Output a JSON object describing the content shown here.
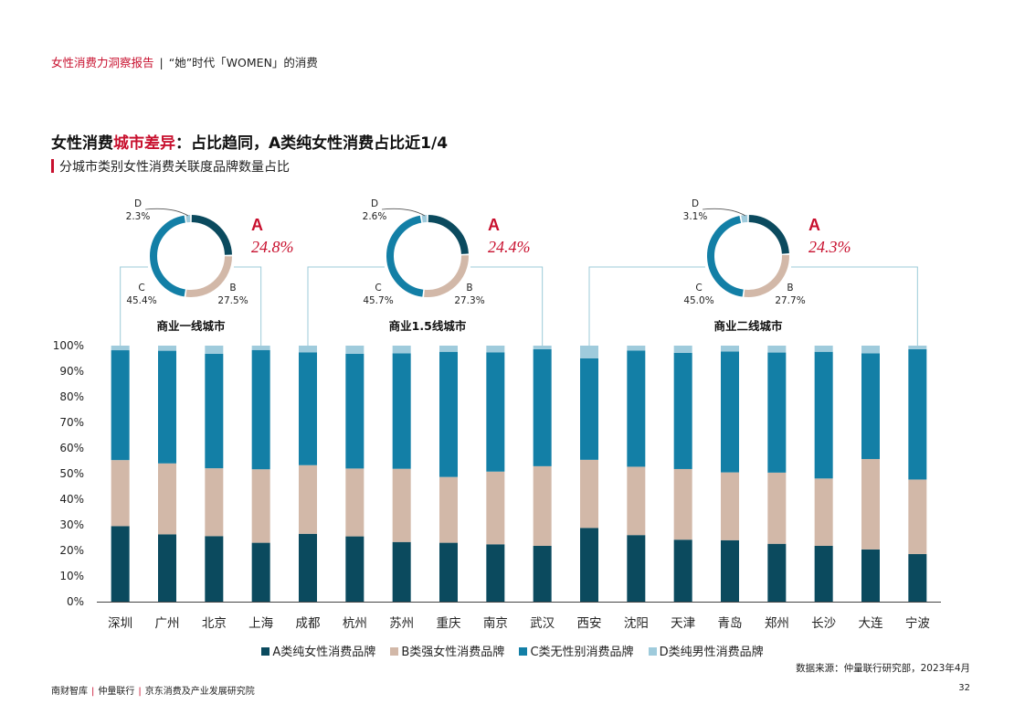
{
  "header": {
    "report": "女性消费力洞察报告",
    "separator": "|",
    "section": "“她”时代「WOMEN」的消费"
  },
  "title": {
    "part1": "女性消费",
    "highlight": "城市差异",
    "part2": "：占比趋同，A类纯女性消费占比近1/4"
  },
  "subtitle": "分城市类别女性消费关联度品牌数量占比",
  "colors": {
    "A": "#0b4a5e",
    "B": "#d2b8a8",
    "C": "#137fa6",
    "D": "#9fcbdc",
    "accent": "#c8102e",
    "bracket": "#9ccbd9"
  },
  "chart_data": {
    "type": "bar",
    "stacked": true,
    "categories": [
      "深圳",
      "广州",
      "北京",
      "上海",
      "成都",
      "杭州",
      "苏州",
      "重庆",
      "南京",
      "武汉",
      "西安",
      "沈阳",
      "天津",
      "青岛",
      "郑州",
      "长沙",
      "大连",
      "宁波"
    ],
    "series": [
      {
        "name": "A类纯女性消费品牌",
        "values": [
          29.5,
          26.3,
          25.6,
          23.0,
          26.5,
          25.5,
          23.3,
          23.0,
          22.4,
          21.8,
          28.8,
          26.0,
          24.2,
          24.0,
          22.6,
          21.8,
          20.4,
          18.6
        ]
      },
      {
        "name": "B类强女性消费品牌",
        "values": [
          25.8,
          27.7,
          26.5,
          28.7,
          26.8,
          26.5,
          28.6,
          25.7,
          28.4,
          31.1,
          26.6,
          26.7,
          27.6,
          26.5,
          27.8,
          26.3,
          35.3,
          29.1
        ]
      },
      {
        "name": "C类无性别消费品牌",
        "values": [
          42.9,
          44.0,
          44.7,
          46.6,
          44.1,
          44.8,
          45.1,
          48.9,
          46.6,
          45.7,
          39.6,
          45.4,
          45.4,
          47.2,
          46.9,
          49.5,
          41.3,
          50.9
        ]
      },
      {
        "name": "D类纯男性消费品牌",
        "values": [
          1.8,
          2.0,
          3.2,
          1.7,
          2.6,
          3.2,
          3.0,
          2.4,
          2.6,
          1.4,
          5.0,
          1.9,
          2.8,
          2.3,
          2.7,
          2.4,
          3.0,
          1.4
        ]
      }
    ],
    "yticks": [
      "0%",
      "10%",
      "20%",
      "30%",
      "40%",
      "50%",
      "60%",
      "70%",
      "80%",
      "90%",
      "100%"
    ],
    "ylim": [
      0,
      100
    ],
    "legend_position": "bottom",
    "grid": false,
    "donuts": [
      {
        "tier": "商业一线城市",
        "from": 0,
        "to": 3,
        "a_label": "A",
        "a_value": "24.8%",
        "slices": [
          24.8,
          27.5,
          45.4,
          2.3
        ],
        "labels": {
          "B": "B",
          "B_value": "27.5%",
          "C": "C",
          "C_value": "45.4%",
          "D": "D",
          "D_value": "2.3%"
        }
      },
      {
        "tier": "商业1.5线城市",
        "from": 4,
        "to": 9,
        "a_label": "A",
        "a_value": "24.4%",
        "slices": [
          24.4,
          27.3,
          45.7,
          2.6
        ],
        "labels": {
          "B": "B",
          "B_value": "27.3%",
          "C": "C",
          "C_value": "45.7%",
          "D": "D",
          "D_value": "2.6%"
        }
      },
      {
        "tier": "商业二线城市",
        "from": 10,
        "to": 17,
        "a_label": "A",
        "a_value": "24.3%",
        "slices": [
          24.3,
          27.7,
          45.0,
          3.1
        ],
        "labels": {
          "B": "B",
          "B_value": "27.7%",
          "C": "C",
          "C_value": "45.0%",
          "D": "D",
          "D_value": "3.1%"
        }
      }
    ]
  },
  "legend": [
    {
      "key": "A",
      "label": "A类纯女性消费品牌"
    },
    {
      "key": "B",
      "label": "B类强女性消费品牌"
    },
    {
      "key": "C",
      "label": "C类无性别消费品牌"
    },
    {
      "key": "D",
      "label": "D类纯男性消费品牌"
    }
  ],
  "source": "数据来源：仲量联行研究部，2023年4月",
  "footer": {
    "org1": "南财智库",
    "org2": "仲量联行",
    "org3": "京东消费及产业发展研究院",
    "sep": "|"
  },
  "page_number": "32"
}
